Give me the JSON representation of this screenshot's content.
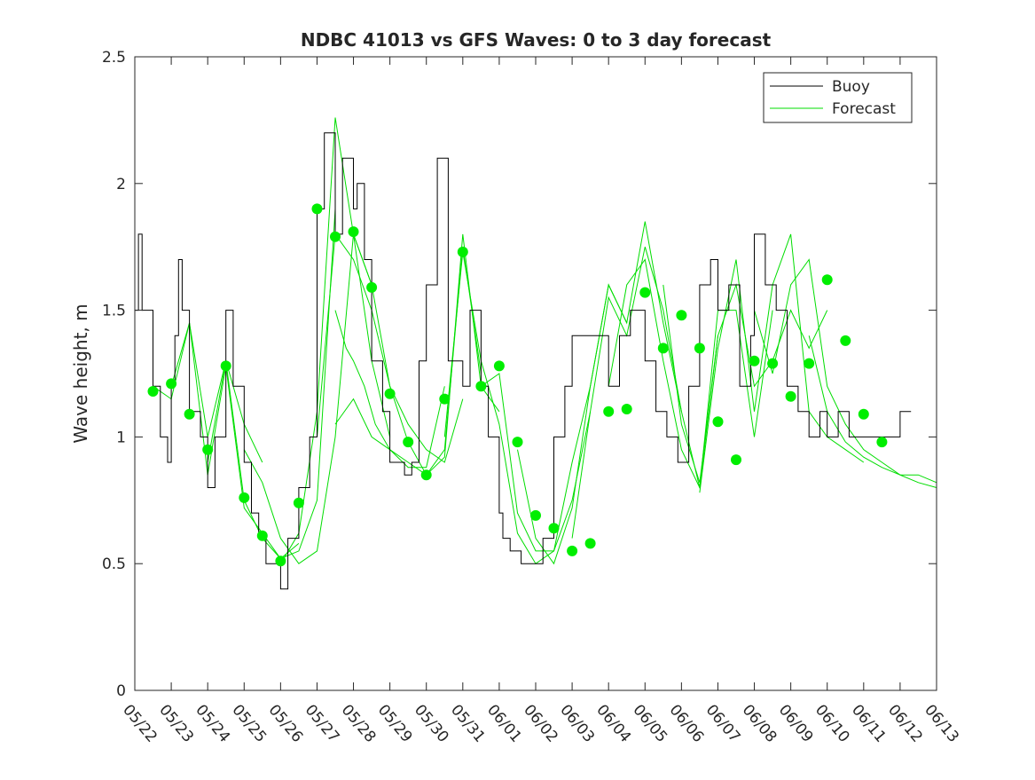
{
  "chart_data": {
    "type": "line",
    "title": "NDBC 41013 vs GFS Waves: 0 to 3 day forecast",
    "ylabel": "Wave height, m",
    "xlabel": "",
    "ylim": [
      0,
      2.5
    ],
    "yticks": [
      0,
      0.5,
      1,
      1.5,
      2,
      2.5
    ],
    "ytick_labels": [
      "0",
      "0.5",
      "1",
      "1.5",
      "2",
      "2.5"
    ],
    "xlim_days": [
      0,
      22
    ],
    "xtick_labels": [
      "05/22",
      "05/23",
      "05/24",
      "05/25",
      "05/26",
      "05/27",
      "05/28",
      "05/29",
      "05/30",
      "05/31",
      "06/01",
      "06/02",
      "06/03",
      "06/04",
      "06/05",
      "06/06",
      "06/07",
      "06/08",
      "06/09",
      "06/10",
      "06/11",
      "06/12",
      "06/13"
    ],
    "legend": {
      "position": "top-right",
      "entries": [
        {
          "label": "Buoy",
          "color": "#000000"
        },
        {
          "label": "Forecast",
          "color": "#00dd00"
        }
      ]
    },
    "colors": {
      "buoy": "#000000",
      "forecast": "#00dd00",
      "markers": "#00ee00"
    },
    "buoy": {
      "x": [
        0,
        0.1,
        0.2,
        0.3,
        0.5,
        0.7,
        0.9,
        1.0,
        1.1,
        1.2,
        1.3,
        1.5,
        1.8,
        2.0,
        2.2,
        2.5,
        2.7,
        3.0,
        3.2,
        3.4,
        3.6,
        3.8,
        4.0,
        4.2,
        4.5,
        4.8,
        5.0,
        5.2,
        5.5,
        5.7,
        6.0,
        6.1,
        6.3,
        6.5,
        6.8,
        7.0,
        7.2,
        7.4,
        7.6,
        7.8,
        8.0,
        8.3,
        8.6,
        9.0,
        9.2,
        9.5,
        9.7,
        10.0,
        10.1,
        10.3,
        10.6,
        11.0,
        11.2,
        11.5,
        11.8,
        12.0,
        12.5,
        13.0,
        13.3,
        13.6,
        14.0,
        14.3,
        14.6,
        14.9,
        15.2,
        15.5,
        15.8,
        16.0,
        16.3,
        16.6,
        16.9,
        17.0,
        17.3,
        17.6,
        17.9,
        18.2,
        18.5,
        18.8,
        19.0,
        19.3,
        19.6,
        19.9,
        20.2,
        20.5,
        20.7,
        21.0,
        21.3
      ],
      "y": [
        1.5,
        1.8,
        1.5,
        1.5,
        1.2,
        1.0,
        0.9,
        1.2,
        1.4,
        1.7,
        1.5,
        1.1,
        1.0,
        0.8,
        1.0,
        1.5,
        1.2,
        0.9,
        0.7,
        0.6,
        0.5,
        0.5,
        0.4,
        0.6,
        0.8,
        1.0,
        1.9,
        2.2,
        1.8,
        2.1,
        1.9,
        2.0,
        1.7,
        1.3,
        1.1,
        0.9,
        0.9,
        0.85,
        0.9,
        1.3,
        1.6,
        2.1,
        1.3,
        1.2,
        1.5,
        1.2,
        1.0,
        0.7,
        0.6,
        0.55,
        0.5,
        0.5,
        0.6,
        1.0,
        1.2,
        1.4,
        1.4,
        1.2,
        1.4,
        1.5,
        1.3,
        1.1,
        1.0,
        0.9,
        1.2,
        1.6,
        1.7,
        1.5,
        1.6,
        1.2,
        1.4,
        1.8,
        1.6,
        1.5,
        1.2,
        1.1,
        1.0,
        1.1,
        1.0,
        1.1,
        1.0,
        1.0,
        1.0,
        1.0,
        1.0,
        1.1,
        1.1
      ]
    },
    "forecast_runs": [
      {
        "x": [
          0.5,
          1.0,
          1.5,
          2.0,
          2.5,
          3.0,
          3.5
        ],
        "y": [
          1.2,
          1.15,
          1.45,
          1.0,
          1.3,
          1.05,
          0.9
        ]
      },
      {
        "x": [
          1.0,
          1.5,
          2.0,
          2.5,
          3.0,
          3.5,
          4.0,
          4.5
        ],
        "y": [
          1.2,
          1.45,
          0.85,
          1.28,
          0.72,
          0.62,
          0.52,
          0.58
        ]
      },
      {
        "x": [
          2.0,
          2.5,
          3.0,
          3.5,
          4.0,
          4.5,
          5.0,
          5.5
        ],
        "y": [
          0.9,
          1.3,
          0.75,
          0.6,
          0.52,
          0.55,
          0.75,
          1.9
        ]
      },
      {
        "x": [
          3.0,
          3.5,
          4.0,
          4.5,
          5.0,
          5.5,
          6.0,
          6.5
        ],
        "y": [
          0.95,
          0.82,
          0.6,
          0.5,
          0.55,
          1.0,
          1.8,
          1.6
        ]
      },
      {
        "x": [
          4.0,
          4.5,
          5.0,
          5.5,
          6.0,
          6.5,
          7.0
        ],
        "y": [
          0.5,
          0.62,
          1.1,
          2.26,
          1.8,
          1.3,
          1.0
        ]
      },
      {
        "x": [
          5.0,
          5.5,
          6.0,
          6.5,
          7.0,
          7.5,
          8.0,
          8.5,
          9.0
        ],
        "y": [
          1.0,
          1.8,
          1.7,
          1.5,
          1.2,
          1.05,
          0.95,
          0.9,
          1.15
        ]
      },
      {
        "x": [
          5.5,
          5.8,
          6.0,
          6.3,
          6.6,
          7.0,
          7.5,
          8.0,
          8.5
        ],
        "y": [
          1.5,
          1.35,
          1.3,
          1.2,
          1.05,
          0.95,
          0.88,
          0.88,
          1.2
        ]
      },
      {
        "x": [
          5.5,
          6.0,
          6.5,
          7.0,
          7.5,
          8.0,
          8.5,
          9.0,
          9.5
        ],
        "y": [
          1.05,
          1.15,
          1.0,
          0.95,
          0.9,
          0.85,
          0.95,
          1.75,
          1.25
        ]
      },
      {
        "x": [
          6.0,
          6.5,
          7.0,
          7.5,
          8.0,
          8.5,
          9.0,
          9.5,
          10.0
        ],
        "y": [
          1.8,
          1.6,
          1.2,
          0.98,
          0.85,
          0.92,
          1.8,
          1.2,
          1.1
        ]
      },
      {
        "x": [
          8.5,
          9.0,
          9.5,
          10.0,
          10.5,
          11.0,
          11.5,
          12.0,
          12.5
        ],
        "y": [
          1.0,
          1.73,
          1.3,
          1.05,
          0.62,
          0.5,
          0.55,
          0.75,
          1.1
        ]
      },
      {
        "x": [
          9.5,
          10.0,
          10.5,
          11.0,
          11.5,
          12.0,
          12.5,
          13.0,
          13.5
        ],
        "y": [
          1.2,
          1.25,
          0.7,
          0.55,
          0.55,
          0.9,
          1.2,
          1.6,
          1.45
        ]
      },
      {
        "x": [
          10.5,
          11.0,
          11.5,
          12.0,
          12.5,
          13.0,
          13.5,
          14.0,
          14.5,
          15.0
        ],
        "y": [
          0.95,
          0.6,
          0.5,
          0.72,
          1.2,
          1.6,
          1.45,
          1.85,
          1.45,
          1.1
        ]
      },
      {
        "x": [
          12.0,
          12.5,
          13.0,
          13.5,
          14.0,
          14.5,
          15.0,
          15.5,
          16.0
        ],
        "y": [
          0.6,
          1.1,
          1.55,
          1.4,
          1.75,
          1.5,
          1.1,
          0.8,
          1.4
        ]
      },
      {
        "x": [
          13.0,
          13.5,
          14.0,
          14.5,
          15.0,
          15.5,
          16.0,
          16.5,
          17.0,
          17.5
        ],
        "y": [
          1.2,
          1.6,
          1.7,
          1.3,
          0.95,
          0.8,
          1.5,
          1.5,
          1.0,
          1.5
        ]
      },
      {
        "x": [
          14.5,
          15.0,
          15.5,
          16.0,
          16.5,
          17.0,
          17.5,
          18.0,
          18.5,
          19.0
        ],
        "y": [
          1.6,
          1.05,
          0.82,
          1.4,
          1.6,
          1.2,
          1.3,
          1.5,
          1.35,
          1.5
        ]
      },
      {
        "x": [
          15.5,
          16.0,
          16.5,
          17.0,
          17.5,
          18.0,
          18.5,
          19.0,
          19.5,
          20.0
        ],
        "y": [
          0.78,
          1.35,
          1.7,
          1.1,
          1.6,
          1.8,
          1.1,
          1.0,
          0.95,
          0.9
        ]
      },
      {
        "x": [
          17.0,
          17.5,
          18.0,
          18.5,
          19.0,
          19.5,
          20.0,
          20.5,
          21.0,
          21.5,
          22.0
        ],
        "y": [
          1.5,
          1.25,
          1.6,
          1.7,
          1.2,
          1.05,
          0.95,
          0.9,
          0.85,
          0.85,
          0.82
        ]
      },
      {
        "x": [
          18.5,
          19.0,
          19.5,
          20.0,
          20.5,
          21.0,
          21.5,
          22.0
        ],
        "y": [
          1.4,
          1.1,
          0.98,
          0.92,
          0.88,
          0.85,
          0.82,
          0.8
        ]
      }
    ],
    "markers": {
      "x": [
        0.5,
        1.0,
        1.5,
        2.0,
        2.5,
        3.0,
        3.5,
        4.0,
        4.5,
        5.0,
        5.5,
        6.0,
        6.5,
        7.0,
        7.5,
        8.0,
        8.5,
        9.0,
        9.5,
        10.0,
        10.5,
        11.0,
        11.5,
        12.0,
        12.5,
        13.0,
        13.5,
        14.0,
        14.5,
        15.0,
        15.5,
        16.0,
        16.5,
        17.0,
        17.5,
        18.0,
        18.5,
        19.0,
        19.5,
        20.0,
        20.5
      ],
      "y": [
        1.18,
        1.21,
        1.09,
        0.95,
        1.28,
        0.76,
        0.61,
        0.51,
        0.74,
        1.9,
        1.79,
        1.81,
        1.59,
        1.17,
        0.98,
        0.85,
        1.15,
        1.73,
        1.2,
        1.28,
        0.98,
        0.69,
        0.64,
        0.55,
        0.58,
        1.1,
        1.11,
        1.57,
        1.35,
        1.48,
        1.35,
        1.06,
        0.91,
        1.3,
        1.29,
        1.16,
        1.29,
        1.62,
        1.38,
        1.09,
        0.98
      ]
    }
  }
}
